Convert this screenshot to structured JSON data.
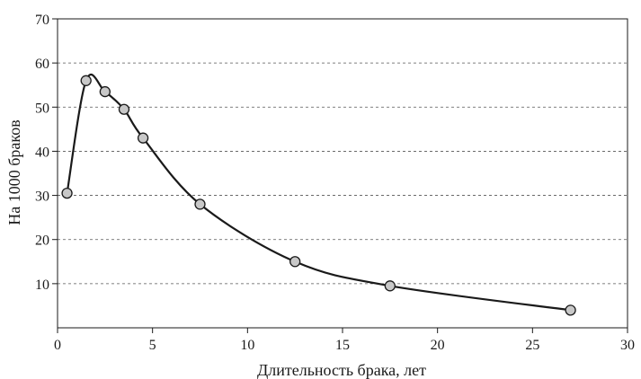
{
  "chart_data": {
    "type": "line",
    "title": "",
    "xlabel": "Длительность брака, лет",
    "ylabel": "На 1000 браков",
    "xlim": [
      0,
      30
    ],
    "ylim": [
      0,
      70
    ],
    "x_ticks": [
      0,
      5,
      10,
      15,
      20,
      25,
      30
    ],
    "y_ticks": [
      10,
      20,
      30,
      40,
      50,
      60,
      70
    ],
    "grid": "horizontal dashed",
    "legend": "none",
    "series": [
      {
        "x": [
          0.5,
          1.5,
          2.5,
          3.5,
          4.5,
          7.5,
          12.5,
          17.5,
          27
        ],
        "values": [
          30.5,
          56,
          53.5,
          49.5,
          43,
          28,
          15,
          9.5,
          4
        ],
        "line_color": "#1a1a1a",
        "marker_color": "#c8c8c8"
      }
    ]
  }
}
